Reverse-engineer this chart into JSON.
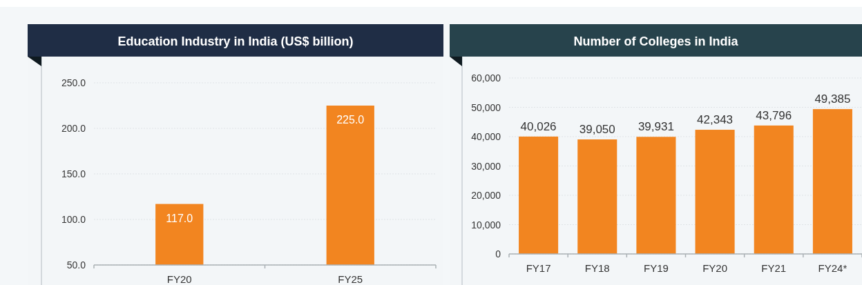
{
  "chart_data": [
    {
      "type": "bar",
      "title": "Education Industry in India (US$ billion)",
      "categories": [
        "FY20",
        "FY25"
      ],
      "values": [
        117,
        225
      ],
      "color": "#f28520",
      "value_labels": [
        "117.0",
        "225.0"
      ],
      "ylim": [
        50,
        250
      ],
      "yticks": [
        {
          "value": 50,
          "label": "50.0"
        },
        {
          "value": 100,
          "label": "100.0"
        },
        {
          "value": 150,
          "label": "150.0"
        },
        {
          "value": 200,
          "label": "200.0"
        },
        {
          "value": 250,
          "label": "250.0"
        }
      ],
      "grid": "y"
    },
    {
      "type": "bar",
      "title": "Number of Colleges in India",
      "categories": [
        "FY17",
        "FY18",
        "FY19",
        "FY20",
        "FY21",
        "FY24*"
      ],
      "values": [
        40026,
        39050,
        39931,
        42343,
        43796,
        49385
      ],
      "color": "#f28520",
      "value_labels": [
        "40,026",
        "39,050",
        "39,931",
        "42,343",
        "43,796",
        "49,385"
      ],
      "ylim": [
        0,
        60000
      ],
      "yticks": [
        0,
        {
          "value": 10000,
          "label": "10,000"
        },
        {
          "value": 20000,
          "label": "20,000"
        },
        {
          "value": 30000,
          "label": "30,000"
        },
        {
          "value": 40000,
          "label": "40,000"
        },
        {
          "value": 50000,
          "label": "50,000"
        },
        {
          "value": 60000,
          "label": "60,000"
        }
      ],
      "grid": "y"
    }
  ]
}
